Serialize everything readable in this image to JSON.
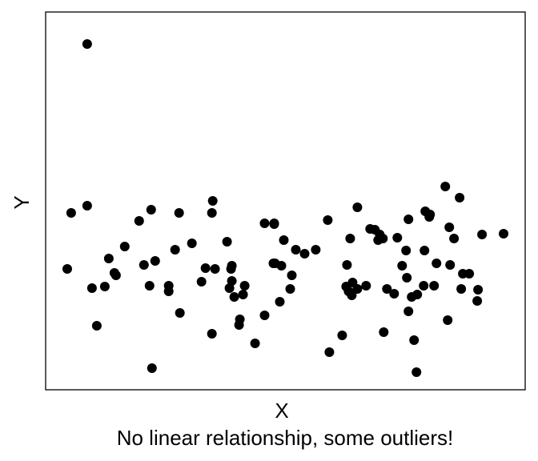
{
  "chart_data": {
    "type": "scatter",
    "title": "",
    "xlabel": "X",
    "ylabel": "Y",
    "caption": "No linear relationship, some outliers!",
    "grid": false,
    "legend": "none",
    "ticks": "none",
    "xlim": [
      0,
      600
    ],
    "ylim": [
      0,
      472
    ],
    "point_color": "#000000",
    "points": [
      [
        52,
        432
      ],
      [
        27,
        151
      ],
      [
        32,
        221
      ],
      [
        52,
        230
      ],
      [
        58,
        127
      ],
      [
        64,
        80
      ],
      [
        74,
        129
      ],
      [
        79,
        164
      ],
      [
        86,
        146
      ],
      [
        88,
        143
      ],
      [
        99,
        179
      ],
      [
        117,
        211
      ],
      [
        123,
        156
      ],
      [
        130,
        130
      ],
      [
        132,
        225
      ],
      [
        133,
        27
      ],
      [
        137,
        161
      ],
      [
        154,
        130
      ],
      [
        154,
        123
      ],
      [
        162,
        175
      ],
      [
        167,
        221
      ],
      [
        168,
        96
      ],
      [
        183,
        183
      ],
      [
        195,
        135
      ],
      [
        200,
        152
      ],
      [
        208,
        70
      ],
      [
        208,
        221
      ],
      [
        209,
        236
      ],
      [
        212,
        151
      ],
      [
        227,
        185
      ],
      [
        232,
        151
      ],
      [
        233,
        155
      ],
      [
        233,
        136
      ],
      [
        230,
        127
      ],
      [
        236,
        116
      ],
      [
        242,
        81
      ],
      [
        243,
        88
      ],
      [
        247,
        119
      ],
      [
        249,
        130
      ],
      [
        262,
        58
      ],
      [
        274,
        93
      ],
      [
        274,
        208
      ],
      [
        285,
        158
      ],
      [
        286,
        208
      ],
      [
        286,
        207
      ],
      [
        287,
        158
      ],
      [
        293,
        110
      ],
      [
        298,
        187
      ],
      [
        295,
        155
      ],
      [
        306,
        126
      ],
      [
        308,
        143
      ],
      [
        313,
        175
      ],
      [
        324,
        170
      ],
      [
        338,
        175
      ],
      [
        353,
        212
      ],
      [
        355,
        47
      ],
      [
        371,
        68
      ],
      [
        376,
        129
      ],
      [
        377,
        156
      ],
      [
        379,
        123
      ],
      [
        381,
        189
      ],
      [
        384,
        134
      ],
      [
        390,
        126
      ],
      [
        383,
        118
      ],
      [
        390,
        228
      ],
      [
        401,
        130
      ],
      [
        406,
        201
      ],
      [
        412,
        200
      ],
      [
        416,
        187
      ],
      [
        418,
        194
      ],
      [
        423,
        72
      ],
      [
        422,
        189
      ],
      [
        436,
        120
      ],
      [
        427,
        126
      ],
      [
        440,
        190
      ],
      [
        446,
        155
      ],
      [
        451,
        174
      ],
      [
        452,
        140
      ],
      [
        454,
        213
      ],
      [
        454,
        98
      ],
      [
        458,
        116
      ],
      [
        461,
        62
      ],
      [
        464,
        22
      ],
      [
        465,
        119
      ],
      [
        474,
        174
      ],
      [
        475,
        223
      ],
      [
        473,
        130
      ],
      [
        480,
        216
      ],
      [
        481,
        219
      ],
      [
        486,
        130
      ],
      [
        489,
        158
      ],
      [
        500,
        254
      ],
      [
        503,
        87
      ],
      [
        505,
        203
      ],
      [
        506,
        156
      ],
      [
        511,
        189
      ],
      [
        518,
        240
      ],
      [
        520,
        126
      ],
      [
        522,
        145
      ],
      [
        530,
        145
      ],
      [
        541,
        125
      ],
      [
        540,
        111
      ],
      [
        546,
        194
      ],
      [
        573,
        195
      ]
    ]
  }
}
